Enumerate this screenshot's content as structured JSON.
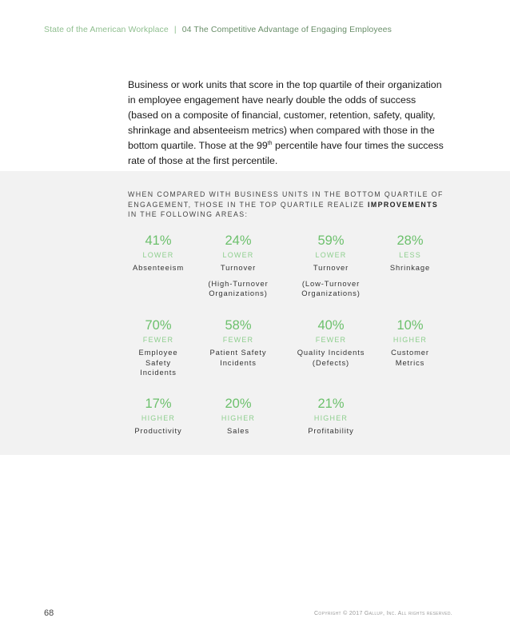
{
  "header": {
    "report_title": "State of the American Workplace",
    "separator": "|",
    "section": "04  The Competitive Advantage of Engaging Employees"
  },
  "intro": {
    "part1": "Business or work units that score in the top quartile of their organization in employee engagement have nearly double the odds of success (based on a composite of financial, customer, retention, safety, quality, shrinkage and absenteeism metrics) when compared with those in the bottom quartile. Those at the 99",
    "superscript": "th",
    "part2": " percentile have four times the success rate of those at the first percentile."
  },
  "panel": {
    "heading_part1": "When compared with business units in the bottom quartile of engagement, those in the top quartile realize ",
    "heading_bold": "improvements",
    "heading_part2": " in the following areas:",
    "rows": [
      [
        {
          "pct": "41%",
          "dir": "LOWER",
          "label": "Absenteeism",
          "sub": ""
        },
        {
          "pct": "24%",
          "dir": "LOWER",
          "label": "Turnover",
          "sub": "(High-Turnover\nOrganizations)"
        },
        {
          "pct": "59%",
          "dir": "LOWER",
          "label": "Turnover",
          "sub": "(Low-Turnover\nOrganizations)"
        },
        {
          "pct": "28%",
          "dir": "LESS",
          "label": "Shrinkage",
          "sub": ""
        }
      ],
      [
        {
          "pct": "70%",
          "dir": "FEWER",
          "label": "Employee\nSafety\nIncidents",
          "sub": ""
        },
        {
          "pct": "58%",
          "dir": "FEWER",
          "label": "Patient Safety\nIncidents",
          "sub": ""
        },
        {
          "pct": "40%",
          "dir": "FEWER",
          "label": "Quality Incidents\n(Defects)",
          "sub": ""
        },
        {
          "pct": "10%",
          "dir": "HIGHER",
          "label": "Customer\nMetrics",
          "sub": ""
        }
      ],
      [
        {
          "pct": "17%",
          "dir": "HIGHER",
          "label": "Productivity",
          "sub": ""
        },
        {
          "pct": "20%",
          "dir": "HIGHER",
          "label": "Sales",
          "sub": ""
        },
        {
          "pct": "21%",
          "dir": "HIGHER",
          "label": "Profitability",
          "sub": ""
        }
      ]
    ]
  },
  "footer": {
    "page_number": "68",
    "copyright": "Copyright © 2017 Gallup, Inc. All rights reserved."
  }
}
